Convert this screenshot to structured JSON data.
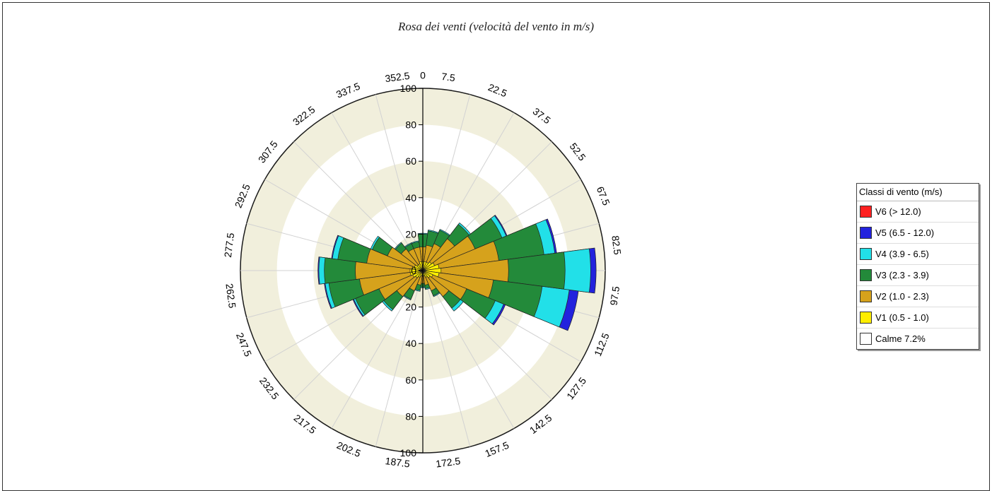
{
  "chart_data": {
    "type": "wind-rose",
    "title": "Rosa dei venti (velocità del vento in m/s)",
    "radial_ticks": [
      "0",
      "20",
      "40",
      "60",
      "80",
      "100"
    ],
    "rlim": [
      0,
      100
    ],
    "direction_labels": [
      "0",
      "7.5",
      "22.5",
      "37.5",
      "52.5",
      "67.5",
      "82.5",
      "97.5",
      "112.5",
      "127.5",
      "142.5",
      "157.5",
      "172.5",
      "187.5",
      "202.5",
      "217.5",
      "232.5",
      "247.5",
      "262.5",
      "277.5",
      "292.5",
      "307.5",
      "322.5",
      "337.5",
      "352.5"
    ],
    "sector_centers_deg": [
      0,
      15,
      30,
      45,
      60,
      75,
      90,
      105,
      120,
      135,
      150,
      165,
      180,
      195,
      210,
      225,
      240,
      255,
      270,
      285,
      300,
      315,
      330,
      345
    ],
    "legend_title": "Classi di vento (m/s)",
    "classes": [
      {
        "name": "V6 (> 12.0)",
        "color": "#ff2020"
      },
      {
        "name": "V5 (6.5 - 12.0)",
        "color": "#2222dd"
      },
      {
        "name": "V4 (3.9 - 6.5)",
        "color": "#22e0e8"
      },
      {
        "name": "V3 (2.3 - 3.9)",
        "color": "#238a3a"
      },
      {
        "name": "V2 (1.0 - 2.3)",
        "color": "#d6a21c"
      },
      {
        "name": "V1 (0.5 - 1.0)",
        "color": "#ffee00"
      },
      {
        "name": "Calme 7.2%",
        "color": "#ffffff"
      }
    ],
    "series": [
      {
        "name": "V1 (0.5 - 1.0)",
        "values": [
          5,
          5,
          5,
          6,
          7,
          9,
          10,
          9,
          6,
          5,
          4,
          3,
          3,
          3,
          4,
          5,
          6,
          7,
          7,
          6,
          5,
          4,
          4,
          5
        ]
      },
      {
        "name": "V2 (1.0 - 2.3)",
        "values": [
          8,
          9,
          11,
          16,
          24,
          33,
          37,
          30,
          20,
          13,
          8,
          5,
          4,
          5,
          8,
          13,
          20,
          28,
          30,
          25,
          16,
          11,
          9,
          8
        ]
      },
      {
        "name": "V3 (2.3 - 3.9)",
        "values": [
          7,
          8,
          8,
          10,
          16,
          25,
          31,
          27,
          17,
          8,
          3,
          2,
          2,
          3,
          5,
          9,
          14,
          17,
          17,
          16,
          9,
          4,
          3,
          3
        ]
      },
      {
        "name": "V4 (3.9 - 6.5)",
        "values": [
          0.5,
          0.5,
          0.5,
          1,
          2.5,
          6,
          14,
          15,
          5,
          2,
          0.5,
          0.5,
          0.5,
          0.5,
          0.5,
          1,
          1,
          2,
          3,
          3,
          1,
          0.5,
          0.5,
          0.5
        ]
      },
      {
        "name": "V5 (6.5 - 12.0)",
        "values": [
          0,
          0,
          0,
          0,
          0.5,
          1,
          3,
          5,
          1,
          0,
          0,
          0,
          0,
          0,
          0,
          0,
          0.5,
          0.5,
          0.5,
          0.5,
          0,
          0,
          0,
          0
        ]
      },
      {
        "name": "V6 (> 12.0)",
        "values": [
          0,
          0,
          0,
          0,
          0,
          0,
          0,
          0,
          0,
          0,
          0,
          0,
          0,
          0,
          0,
          0,
          0,
          0,
          0,
          0,
          0,
          0,
          0,
          0
        ]
      }
    ],
    "colors": {
      "band_fill": "#f1efdc",
      "grid_line": "#d2d2d2",
      "outline": "#1a1a1a"
    },
    "legend_position": "right"
  }
}
